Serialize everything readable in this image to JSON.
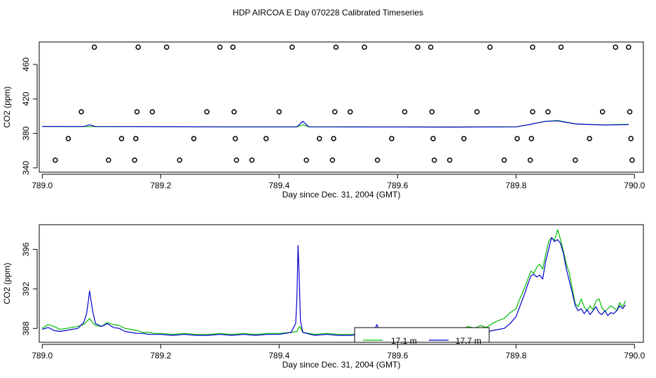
{
  "title": "HDP AIRCOA E  Day 070228  Calibrated Timeseries",
  "colors": {
    "series_17_1": "#00bb00",
    "series_17_7": "#0000cc",
    "axis": "#000000"
  },
  "chart_data": [
    {
      "type": "scatter",
      "title": "",
      "xlabel": "Day since Dec. 31, 2004 (GMT)",
      "ylabel": "CO2 (ppm)",
      "xlim": [
        788.995,
        790.015
      ],
      "ylim": [
        335,
        486
      ],
      "xticks": [
        789.0,
        789.2,
        789.4,
        789.6,
        789.8,
        790.0
      ],
      "xtick_labels": [
        "789.0",
        "789.2",
        "789.4",
        "789.6",
        "789.8",
        "790.0"
      ],
      "yticks": [
        340,
        380,
        420,
        460
      ],
      "ytick_labels": [
        "340",
        "380",
        "420",
        "460"
      ],
      "grid": false,
      "points": [
        {
          "x": 789.088,
          "y": 480
        },
        {
          "x": 789.162,
          "y": 480
        },
        {
          "x": 789.21,
          "y": 480
        },
        {
          "x": 789.3,
          "y": 480
        },
        {
          "x": 789.322,
          "y": 480
        },
        {
          "x": 789.422,
          "y": 480
        },
        {
          "x": 789.496,
          "y": 480
        },
        {
          "x": 789.544,
          "y": 480
        },
        {
          "x": 789.634,
          "y": 480
        },
        {
          "x": 789.656,
          "y": 480
        },
        {
          "x": 789.756,
          "y": 480
        },
        {
          "x": 789.828,
          "y": 480
        },
        {
          "x": 789.876,
          "y": 480
        },
        {
          "x": 789.968,
          "y": 480
        },
        {
          "x": 789.99,
          "y": 480
        },
        {
          "x": 789.066,
          "y": 405
        },
        {
          "x": 789.16,
          "y": 405
        },
        {
          "x": 789.186,
          "y": 405
        },
        {
          "x": 789.278,
          "y": 405
        },
        {
          "x": 789.324,
          "y": 405
        },
        {
          "x": 789.4,
          "y": 405
        },
        {
          "x": 789.494,
          "y": 405
        },
        {
          "x": 789.52,
          "y": 405
        },
        {
          "x": 789.612,
          "y": 405
        },
        {
          "x": 789.658,
          "y": 405
        },
        {
          "x": 789.734,
          "y": 405
        },
        {
          "x": 789.828,
          "y": 405
        },
        {
          "x": 789.854,
          "y": 405
        },
        {
          "x": 789.946,
          "y": 405
        },
        {
          "x": 789.992,
          "y": 405
        },
        {
          "x": 789.044,
          "y": 374
        },
        {
          "x": 789.134,
          "y": 374
        },
        {
          "x": 789.158,
          "y": 374
        },
        {
          "x": 789.256,
          "y": 374
        },
        {
          "x": 789.326,
          "y": 374
        },
        {
          "x": 789.378,
          "y": 374
        },
        {
          "x": 789.468,
          "y": 374
        },
        {
          "x": 789.492,
          "y": 374
        },
        {
          "x": 789.59,
          "y": 374
        },
        {
          "x": 789.66,
          "y": 374
        },
        {
          "x": 789.712,
          "y": 374
        },
        {
          "x": 789.802,
          "y": 374
        },
        {
          "x": 789.826,
          "y": 374
        },
        {
          "x": 789.924,
          "y": 374
        },
        {
          "x": 789.994,
          "y": 374
        },
        {
          "x": 789.022,
          "y": 349
        },
        {
          "x": 789.112,
          "y": 349
        },
        {
          "x": 789.156,
          "y": 349
        },
        {
          "x": 789.232,
          "y": 349
        },
        {
          "x": 789.328,
          "y": 349
        },
        {
          "x": 789.354,
          "y": 349
        },
        {
          "x": 789.446,
          "y": 349
        },
        {
          "x": 789.49,
          "y": 349
        },
        {
          "x": 789.566,
          "y": 349
        },
        {
          "x": 789.662,
          "y": 349
        },
        {
          "x": 789.688,
          "y": 349
        },
        {
          "x": 789.78,
          "y": 349
        },
        {
          "x": 789.824,
          "y": 349
        },
        {
          "x": 789.9,
          "y": 349
        },
        {
          "x": 789.996,
          "y": 349
        }
      ],
      "series": [
        {
          "color": "#00bb00",
          "x": [
            789.0,
            789.3,
            789.43,
            789.44,
            789.45,
            789.7,
            789.8,
            789.82,
            789.85,
            789.87,
            789.9,
            789.95,
            789.99
          ],
          "y": [
            388,
            387.6,
            387.6,
            390,
            387.6,
            387.4,
            387.6,
            390,
            394,
            395,
            391,
            389.8,
            390.5
          ]
        },
        {
          "color": "#0000cc",
          "x": [
            789.0,
            789.07,
            789.08,
            789.09,
            789.3,
            789.43,
            789.44,
            789.45,
            789.7,
            789.8,
            789.82,
            789.85,
            789.87,
            789.9,
            789.95,
            789.99
          ],
          "y": [
            388,
            388,
            390,
            388,
            387.6,
            387.6,
            394,
            387.6,
            387.4,
            387.6,
            390,
            394,
            394.5,
            391,
            389.6,
            390.3
          ]
        }
      ]
    },
    {
      "type": "line",
      "title": "",
      "xlabel": "Day since Dec. 31, 2004 (GMT)",
      "ylabel": "CO2 (ppm)",
      "xlim": [
        788.995,
        790.015
      ],
      "ylim": [
        386.6,
        398.5
      ],
      "xticks": [
        789.0,
        789.2,
        789.4,
        789.6,
        789.8,
        790.0
      ],
      "xtick_labels": [
        "789.0",
        "789.2",
        "789.4",
        "789.6",
        "789.8",
        "790.0"
      ],
      "yticks": [
        388,
        392,
        396
      ],
      "ytick_labels": [
        "388",
        "392",
        "396"
      ],
      "grid": false,
      "legend": {
        "placement": "bottom-center",
        "entries": [
          "17.1 m",
          "17.7 m"
        ]
      },
      "series": [
        {
          "name": "17.1 m",
          "color": "#00bb00",
          "x": [
            789.0,
            789.01,
            789.02,
            789.03,
            789.04,
            789.05,
            789.06,
            789.07,
            789.075,
            789.08,
            789.085,
            789.09,
            789.1,
            789.11,
            789.12,
            789.13,
            789.14,
            789.15,
            789.16,
            789.17,
            789.18,
            789.19,
            789.2,
            789.22,
            789.24,
            789.26,
            789.28,
            789.3,
            789.32,
            789.34,
            789.36,
            789.38,
            789.4,
            789.42,
            789.43,
            789.432,
            789.435,
            789.44,
            789.46,
            789.48,
            789.5,
            789.52,
            789.54,
            789.56,
            789.58,
            789.6,
            789.62,
            789.64,
            789.66,
            789.68,
            789.7,
            789.71,
            789.72,
            789.73,
            789.74,
            789.75,
            789.76,
            789.77,
            789.78,
            789.79,
            789.8,
            789.805,
            789.81,
            789.815,
            789.82,
            789.825,
            789.83,
            789.835,
            789.84,
            789.845,
            789.85,
            789.855,
            789.86,
            789.865,
            789.87,
            789.875,
            789.88,
            789.885,
            789.89,
            789.895,
            789.9,
            789.905,
            789.91,
            789.915,
            789.92,
            789.925,
            789.93,
            789.935,
            789.94,
            789.945,
            789.95,
            789.955,
            789.96,
            789.965,
            789.97,
            789.975,
            789.98,
            789.985
          ],
          "y": [
            388.0,
            388.4,
            388.2,
            387.9,
            388.0,
            388.1,
            388.2,
            388.4,
            388.7,
            389.0,
            388.6,
            388.3,
            388.2,
            388.6,
            388.4,
            388.3,
            388.0,
            387.9,
            387.8,
            387.6,
            387.6,
            387.5,
            387.5,
            387.4,
            387.5,
            387.4,
            387.4,
            387.5,
            387.4,
            387.5,
            387.4,
            387.5,
            387.5,
            387.6,
            387.7,
            388.0,
            388.2,
            387.6,
            387.4,
            387.5,
            387.4,
            387.4,
            387.5,
            387.4,
            387.5,
            387.4,
            387.6,
            387.5,
            387.6,
            387.7,
            387.8,
            388.0,
            388.2,
            388.0,
            388.3,
            388.1,
            388.5,
            388.8,
            389.0,
            389.6,
            390.0,
            390.8,
            391.5,
            392.2,
            393.0,
            393.8,
            393.6,
            394.2,
            394.5,
            394.0,
            395.5,
            396.8,
            397.2,
            396.9,
            398.0,
            397.0,
            395.8,
            394.5,
            393.6,
            392.0,
            390.5,
            390.2,
            391.0,
            390.2,
            389.8,
            390.3,
            389.9,
            390.8,
            391.0,
            390.1,
            389.7,
            390.0,
            390.3,
            390.1,
            389.8,
            390.6,
            390.2,
            390.8
          ]
        },
        {
          "name": "17.7 m",
          "color": "#0000cc",
          "x": [
            789.0,
            789.01,
            789.02,
            789.03,
            789.04,
            789.05,
            789.06,
            789.07,
            789.075,
            789.078,
            789.08,
            789.085,
            789.09,
            789.1,
            789.11,
            789.12,
            789.13,
            789.14,
            789.15,
            789.16,
            789.17,
            789.18,
            789.19,
            789.2,
            789.22,
            789.24,
            789.26,
            789.28,
            789.3,
            789.32,
            789.34,
            789.36,
            789.38,
            789.4,
            789.42,
            789.428,
            789.43,
            789.432,
            789.434,
            789.436,
            789.44,
            789.46,
            789.48,
            789.5,
            789.52,
            789.54,
            789.56,
            789.565,
            789.57,
            789.58,
            789.6,
            789.62,
            789.64,
            789.66,
            789.67,
            789.675,
            789.68,
            789.7,
            789.71,
            789.72,
            789.73,
            789.74,
            789.75,
            789.76,
            789.77,
            789.78,
            789.79,
            789.8,
            789.805,
            789.81,
            789.815,
            789.82,
            789.825,
            789.83,
            789.835,
            789.84,
            789.845,
            789.85,
            789.855,
            789.86,
            789.865,
            789.87,
            789.875,
            789.88,
            789.885,
            789.89,
            789.895,
            789.9,
            789.905,
            789.91,
            789.915,
            789.92,
            789.925,
            789.93,
            789.935,
            789.94,
            789.945,
            789.95,
            789.955,
            789.96,
            789.965,
            789.97,
            789.975,
            789.98,
            789.985
          ],
          "y": [
            387.9,
            388.1,
            387.8,
            387.7,
            387.8,
            387.9,
            388.0,
            388.6,
            389.5,
            390.8,
            391.8,
            389.8,
            388.5,
            388.2,
            388.5,
            388.1,
            388.0,
            387.7,
            387.6,
            387.5,
            387.5,
            387.4,
            387.4,
            387.4,
            387.3,
            387.4,
            387.3,
            387.3,
            387.4,
            387.3,
            387.4,
            387.3,
            387.4,
            387.4,
            387.6,
            388.5,
            391.0,
            396.4,
            393.0,
            388.8,
            387.6,
            387.3,
            387.4,
            387.3,
            387.3,
            387.4,
            387.7,
            388.4,
            387.6,
            387.3,
            387.3,
            387.4,
            387.3,
            387.4,
            387.6,
            388.0,
            387.5,
            387.4,
            387.6,
            387.8,
            387.7,
            387.9,
            387.6,
            387.8,
            387.9,
            388.0,
            388.5,
            389.2,
            390.0,
            390.8,
            391.6,
            392.5,
            393.3,
            393.5,
            393.2,
            393.4,
            393.0,
            394.8,
            396.0,
            397.2,
            396.8,
            397.0,
            396.6,
            395.6,
            394.0,
            392.8,
            391.6,
            390.3,
            389.8,
            390.0,
            389.5,
            389.9,
            389.4,
            389.8,
            390.2,
            389.6,
            389.4,
            389.8,
            389.3,
            389.6,
            389.5,
            389.8,
            390.3,
            390.0,
            390.4
          ]
        }
      ]
    }
  ]
}
